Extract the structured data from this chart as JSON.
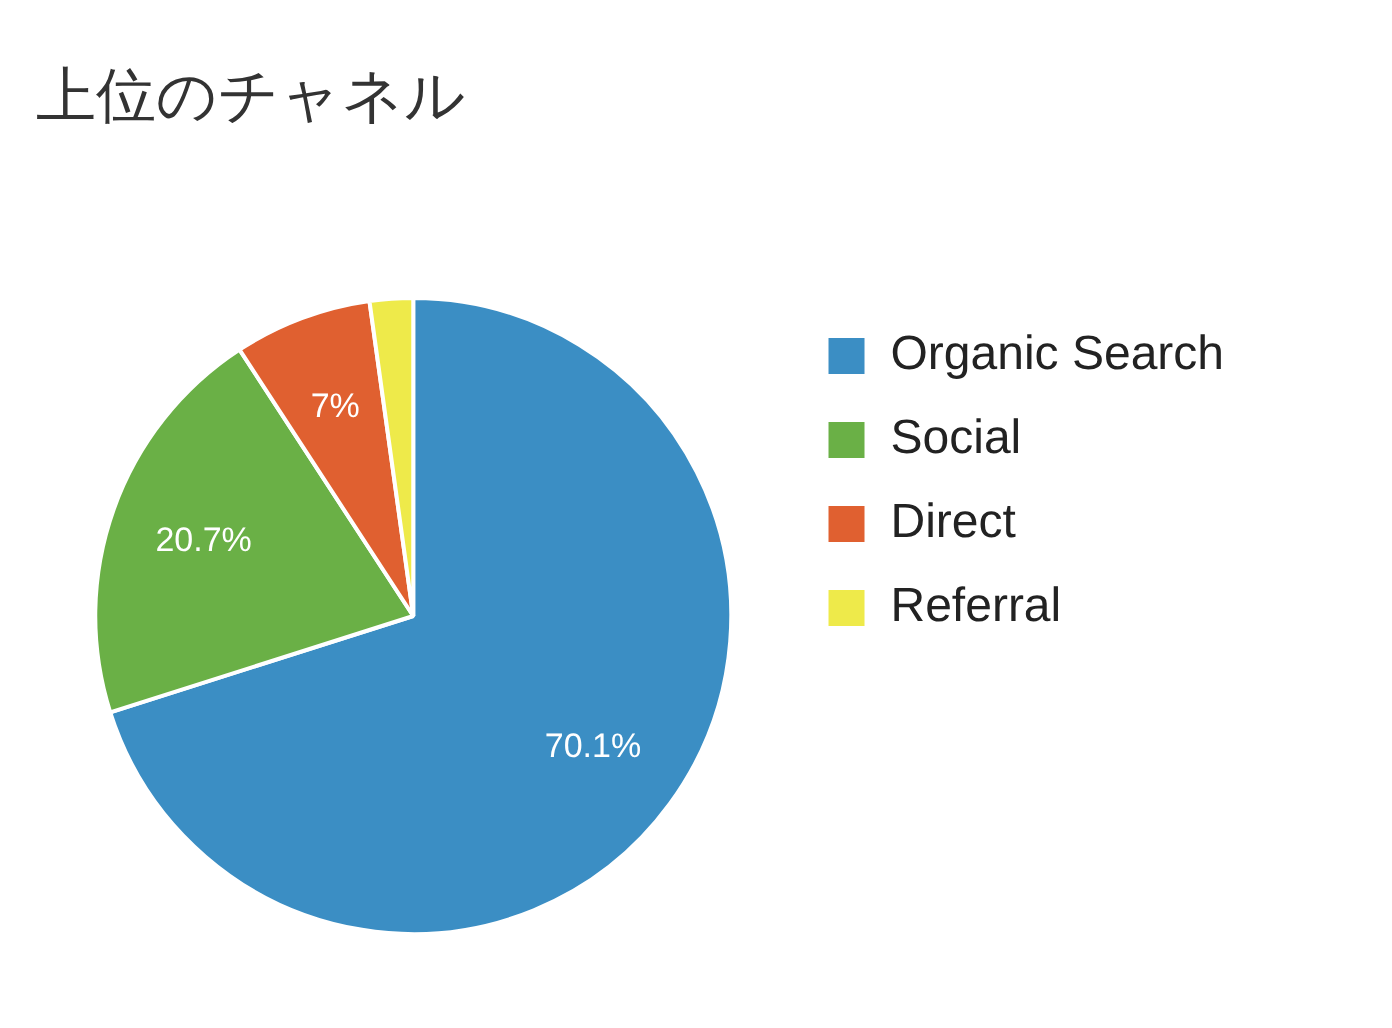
{
  "chart_data": {
    "type": "pie",
    "title": "上位のチャネル",
    "categories": [
      "Organic Search",
      "Social",
      "Direct",
      "Referral"
    ],
    "values": [
      70.1,
      20.7,
      7,
      2.2
    ],
    "colors": [
      "#3b8ec4",
      "#6ab046",
      "#e06030",
      "#eeea4a"
    ],
    "value_labels": [
      "70.1%",
      "20.7%",
      "7%",
      null
    ],
    "legend": "right"
  }
}
